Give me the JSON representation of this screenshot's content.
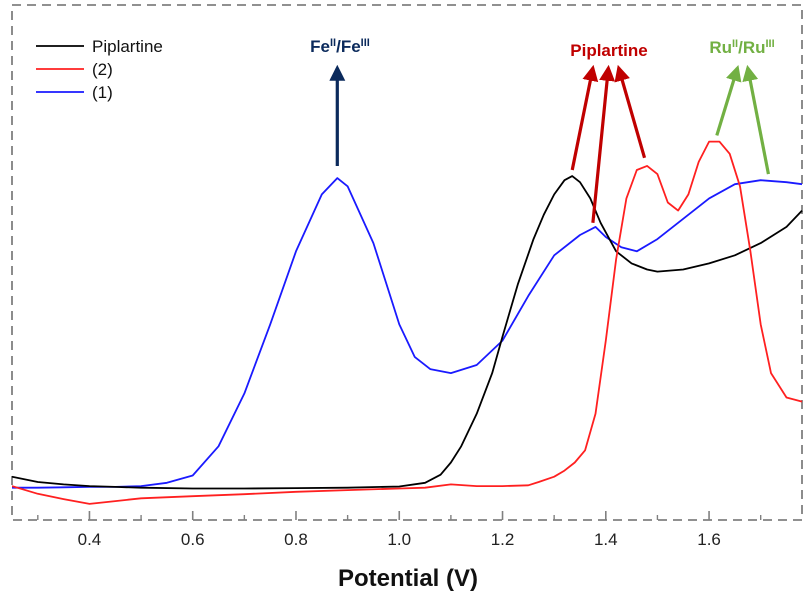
{
  "chart_data": {
    "type": "line",
    "title": "",
    "xlabel": "Potential (V)",
    "ylabel": "",
    "xlim": [
      0.25,
      1.78
    ],
    "ylim": [
      0,
      1
    ],
    "x_ticks": [
      0.4,
      0.6,
      0.8,
      1.0,
      1.2,
      1.4,
      1.6
    ],
    "x_tick_labels": [
      "0.4",
      "0.6",
      "0.8",
      "1.0",
      "1.2",
      "1.4",
      "1.6"
    ],
    "grid": false,
    "legend_position": "top-left",
    "frame_style": "dashed",
    "series": [
      {
        "name": "Piplartine",
        "color": "#000000",
        "points": [
          [
            0.25,
            0.045
          ],
          [
            0.3,
            0.032
          ],
          [
            0.35,
            0.026
          ],
          [
            0.4,
            0.022
          ],
          [
            0.45,
            0.02
          ],
          [
            0.5,
            0.018
          ],
          [
            0.6,
            0.016
          ],
          [
            0.7,
            0.016
          ],
          [
            0.8,
            0.017
          ],
          [
            0.9,
            0.018
          ],
          [
            1.0,
            0.021
          ],
          [
            1.05,
            0.03
          ],
          [
            1.08,
            0.05
          ],
          [
            1.1,
            0.08
          ],
          [
            1.12,
            0.12
          ],
          [
            1.15,
            0.2
          ],
          [
            1.18,
            0.3
          ],
          [
            1.2,
            0.39
          ],
          [
            1.23,
            0.52
          ],
          [
            1.26,
            0.63
          ],
          [
            1.28,
            0.69
          ],
          [
            1.3,
            0.74
          ],
          [
            1.32,
            0.775
          ],
          [
            1.335,
            0.785
          ],
          [
            1.35,
            0.77
          ],
          [
            1.37,
            0.73
          ],
          [
            1.39,
            0.67
          ],
          [
            1.42,
            0.6
          ],
          [
            1.45,
            0.57
          ],
          [
            1.48,
            0.555
          ],
          [
            1.5,
            0.55
          ],
          [
            1.55,
            0.555
          ],
          [
            1.6,
            0.57
          ],
          [
            1.65,
            0.59
          ],
          [
            1.7,
            0.62
          ],
          [
            1.75,
            0.66
          ],
          [
            1.78,
            0.7
          ]
        ]
      },
      {
        "name": "(2)",
        "color": "#ff2020",
        "points": [
          [
            0.25,
            0.022
          ],
          [
            0.3,
            0.003
          ],
          [
            0.35,
            -0.01
          ],
          [
            0.4,
            -0.022
          ],
          [
            0.45,
            -0.015
          ],
          [
            0.5,
            -0.008
          ],
          [
            0.6,
            -0.003
          ],
          [
            0.7,
            0.002
          ],
          [
            0.8,
            0.008
          ],
          [
            0.9,
            0.012
          ],
          [
            1.0,
            0.016
          ],
          [
            1.05,
            0.018
          ],
          [
            1.1,
            0.026
          ],
          [
            1.15,
            0.022
          ],
          [
            1.2,
            0.022
          ],
          [
            1.25,
            0.024
          ],
          [
            1.27,
            0.032
          ],
          [
            1.3,
            0.045
          ],
          [
            1.32,
            0.06
          ],
          [
            1.34,
            0.08
          ],
          [
            1.36,
            0.11
          ],
          [
            1.38,
            0.2
          ],
          [
            1.4,
            0.38
          ],
          [
            1.42,
            0.58
          ],
          [
            1.44,
            0.73
          ],
          [
            1.46,
            0.8
          ],
          [
            1.48,
            0.81
          ],
          [
            1.5,
            0.79
          ],
          [
            1.52,
            0.72
          ],
          [
            1.54,
            0.7
          ],
          [
            1.56,
            0.74
          ],
          [
            1.58,
            0.82
          ],
          [
            1.6,
            0.87
          ],
          [
            1.62,
            0.87
          ],
          [
            1.64,
            0.84
          ],
          [
            1.66,
            0.76
          ],
          [
            1.68,
            0.6
          ],
          [
            1.7,
            0.42
          ],
          [
            1.72,
            0.3
          ],
          [
            1.75,
            0.24
          ],
          [
            1.78,
            0.23
          ]
        ]
      },
      {
        "name": "(1)",
        "color": "#1a1aff",
        "points": [
          [
            0.25,
            0.018
          ],
          [
            0.3,
            0.018
          ],
          [
            0.35,
            0.019
          ],
          [
            0.4,
            0.02
          ],
          [
            0.45,
            0.02
          ],
          [
            0.5,
            0.022
          ],
          [
            0.55,
            0.03
          ],
          [
            0.6,
            0.048
          ],
          [
            0.65,
            0.12
          ],
          [
            0.7,
            0.25
          ],
          [
            0.75,
            0.42
          ],
          [
            0.8,
            0.6
          ],
          [
            0.85,
            0.74
          ],
          [
            0.88,
            0.78
          ],
          [
            0.9,
            0.76
          ],
          [
            0.95,
            0.62
          ],
          [
            1.0,
            0.42
          ],
          [
            1.03,
            0.34
          ],
          [
            1.06,
            0.31
          ],
          [
            1.1,
            0.3
          ],
          [
            1.15,
            0.32
          ],
          [
            1.2,
            0.38
          ],
          [
            1.25,
            0.49
          ],
          [
            1.3,
            0.59
          ],
          [
            1.35,
            0.64
          ],
          [
            1.38,
            0.66
          ],
          [
            1.4,
            0.635
          ],
          [
            1.43,
            0.61
          ],
          [
            1.46,
            0.6
          ],
          [
            1.5,
            0.63
          ],
          [
            1.55,
            0.68
          ],
          [
            1.6,
            0.73
          ],
          [
            1.65,
            0.765
          ],
          [
            1.7,
            0.775
          ],
          [
            1.75,
            0.77
          ],
          [
            1.78,
            0.765
          ]
        ]
      }
    ],
    "annotations": [
      {
        "label_main": "Fe",
        "sup1": "II",
        "sep": "/Fe",
        "sup2": "III",
        "color": "#0b2a5c",
        "arrows": [
          {
            "x": 0.88,
            "y0": 0.81,
            "y1": 1.0
          }
        ]
      },
      {
        "label_main": "Piplartine",
        "sup1": "",
        "sep": "",
        "sup2": "",
        "color": "#c00000",
        "arrows": [
          {
            "x": 1.335,
            "y0": 0.8,
            "x1": 1.375,
            "y1": 1.0
          },
          {
            "x": 1.375,
            "y0": 0.67,
            "x1": 1.405,
            "y1": 1.0
          },
          {
            "x": 1.475,
            "y0": 0.83,
            "x1": 1.425,
            "y1": 1.0
          }
        ]
      },
      {
        "label_main": "Ru",
        "sup1": "II",
        "sep": "/Ru",
        "sup2": "III",
        "color": "#72b043",
        "arrows": [
          {
            "x": 1.615,
            "y0": 0.885,
            "x1": 1.655,
            "y1": 1.0
          },
          {
            "x": 1.715,
            "y0": 0.79,
            "x1": 1.675,
            "y1": 1.0
          }
        ]
      }
    ]
  }
}
